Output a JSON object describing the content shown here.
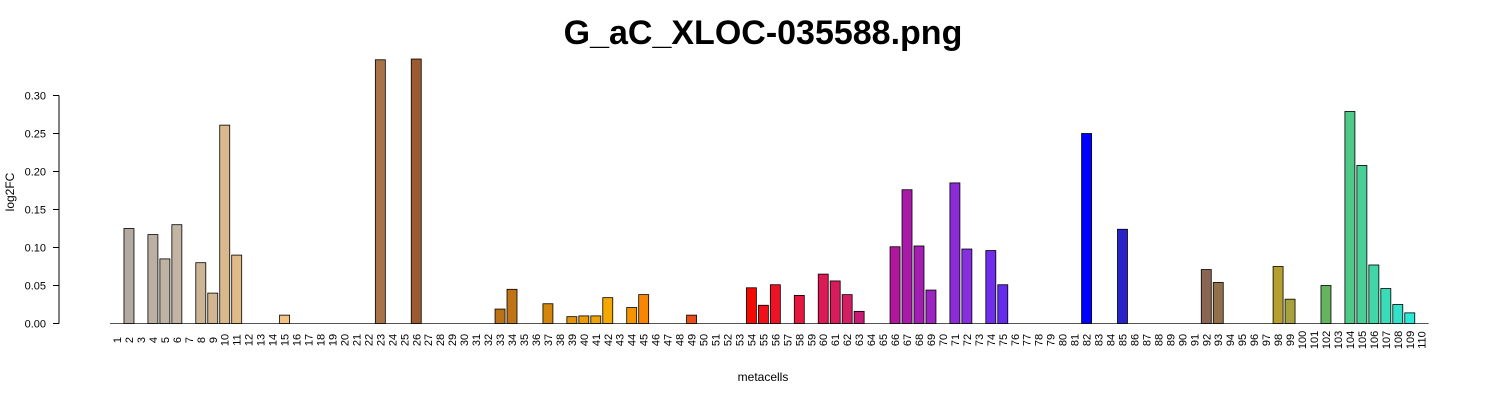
{
  "chart_data": {
    "type": "bar",
    "title": "G_aC_XLOC-035588.png",
    "xlabel": "metacells",
    "ylabel": "log2FC",
    "ylim": [
      0,
      0.35
    ],
    "yticks": [
      "0.00",
      "0.05",
      "0.10",
      "0.15",
      "0.20",
      "0.25",
      "0.30"
    ],
    "grid": false,
    "categories": [
      "1",
      "2",
      "3",
      "4",
      "5",
      "6",
      "7",
      "8",
      "9",
      "10",
      "11",
      "12",
      "13",
      "14",
      "15",
      "16",
      "17",
      "18",
      "19",
      "20",
      "21",
      "22",
      "23",
      "24",
      "25",
      "26",
      "27",
      "28",
      "29",
      "30",
      "31",
      "32",
      "33",
      "34",
      "35",
      "36",
      "37",
      "38",
      "39",
      "40",
      "41",
      "42",
      "43",
      "44",
      "45",
      "46",
      "47",
      "48",
      "49",
      "50",
      "51",
      "52",
      "53",
      "54",
      "55",
      "56",
      "57",
      "58",
      "59",
      "60",
      "61",
      "62",
      "63",
      "64",
      "65",
      "66",
      "67",
      "68",
      "69",
      "70",
      "71",
      "72",
      "73",
      "74",
      "75",
      "76",
      "77",
      "78",
      "79",
      "80",
      "81",
      "82",
      "83",
      "84",
      "85",
      "86",
      "87",
      "88",
      "89",
      "90",
      "91",
      "92",
      "93",
      "94",
      "95",
      "96",
      "97",
      "98",
      "99",
      "100",
      "101",
      "102",
      "103",
      "104",
      "105",
      "106",
      "107",
      "108",
      "109",
      "110"
    ],
    "values": [
      0,
      0.125,
      0,
      0.117,
      0.085,
      0.13,
      0,
      0.08,
      0.04,
      0.261,
      0.09,
      0,
      0,
      0,
      0.011,
      0,
      0,
      0,
      0,
      0,
      0,
      0,
      0.347,
      0,
      0,
      0.348,
      0,
      0,
      0,
      0,
      0,
      0,
      0.019,
      0.045,
      0,
      0,
      0.026,
      0,
      0.009,
      0.01,
      0.01,
      0.034,
      0,
      0.021,
      0.038,
      0,
      0,
      0,
      0.011,
      0,
      0,
      0,
      0,
      0.047,
      0.024,
      0.051,
      0,
      0.037,
      0,
      0.065,
      0.056,
      0.038,
      0.016,
      0,
      0,
      0.101,
      0.176,
      0.102,
      0.044,
      0,
      0.185,
      0.098,
      0,
      0.096,
      0.051,
      0,
      0,
      0,
      0,
      0,
      0,
      0.25,
      0,
      0,
      0.124,
      0,
      0,
      0,
      0,
      0,
      0,
      0.071,
      0.054,
      0,
      0,
      0,
      0,
      0.075,
      0.032,
      0,
      0,
      0.05,
      0,
      0.279,
      0.208,
      0.077,
      0.046,
      0.025,
      0.014,
      0
    ],
    "colors": [
      "#a39a8e",
      "#b3aba1",
      "#b8aea2",
      "#bcb0a2",
      "#bfb3a3",
      "#c2b5a4",
      "#c6b39c",
      "#ccb497",
      "#d2b692",
      "#d9b88e",
      "#e0bb89",
      "#e6bd85",
      "#ebbf81",
      "#f0c07c",
      "#f3c386",
      "#e8bc84",
      "#ddb07a",
      "#d0a26e",
      "#c39563",
      "#b78a58",
      "#ab7d4e",
      "#a0744a",
      "#a87346",
      "#a46b40",
      "#9f6036",
      "#9b5a2f",
      "#a05c2a",
      "#a66024",
      "#ae651d",
      "#b56a16",
      "#bd6e10",
      "#c2730c",
      "#bb7114",
      "#c07415",
      "#c6790f",
      "#cc7f0c",
      "#d3860b",
      "#db8d09",
      "#e29408",
      "#ea9b06",
      "#f0a104",
      "#f5a702",
      "#f6a100",
      "#f79300",
      "#f88600",
      "#f97800",
      "#f46a0a",
      "#ef5b12",
      "#ea4c18",
      "#e83e1b",
      "#ec2f12",
      "#f0210b",
      "#f31405",
      "#f50a02",
      "#f0101a",
      "#ed1226",
      "#e91532",
      "#e5173e",
      "#e0194a",
      "#dc1b56",
      "#d71c5c",
      "#d31e62",
      "#c91a74",
      "#c01983",
      "#b71890",
      "#b1179c",
      "#aa1aa8",
      "#a31fb4",
      "#9c24c0",
      "#9428cc",
      "#8c2cd6",
      "#8430de",
      "#7a2fe4",
      "#6f2ee9",
      "#642dee",
      "#5a2cf2",
      "#502bf5",
      "#4628f8",
      "#3d25fa",
      "#3322fc",
      "#2a1ffd",
      "#0000ff",
      "#1510f0",
      "#1f1bd8",
      "#2a24c8",
      "#3a30ac",
      "#4a3b94",
      "#5a467f",
      "#6a506c",
      "#7a5a5c",
      "#8a6454",
      "#8b6553",
      "#93704c",
      "#9a7c44",
      "#a3883c",
      "#ac9534",
      "#b3a02e",
      "#b79f2f",
      "#a6a13a",
      "#90a546",
      "#7aaa52",
      "#64b45f",
      "#57bd72",
      "#4fc98a",
      "#48cf98",
      "#40d6a8",
      "#38dcb8",
      "#30e3c8",
      "#28ead8",
      "#20f0e6"
    ]
  }
}
